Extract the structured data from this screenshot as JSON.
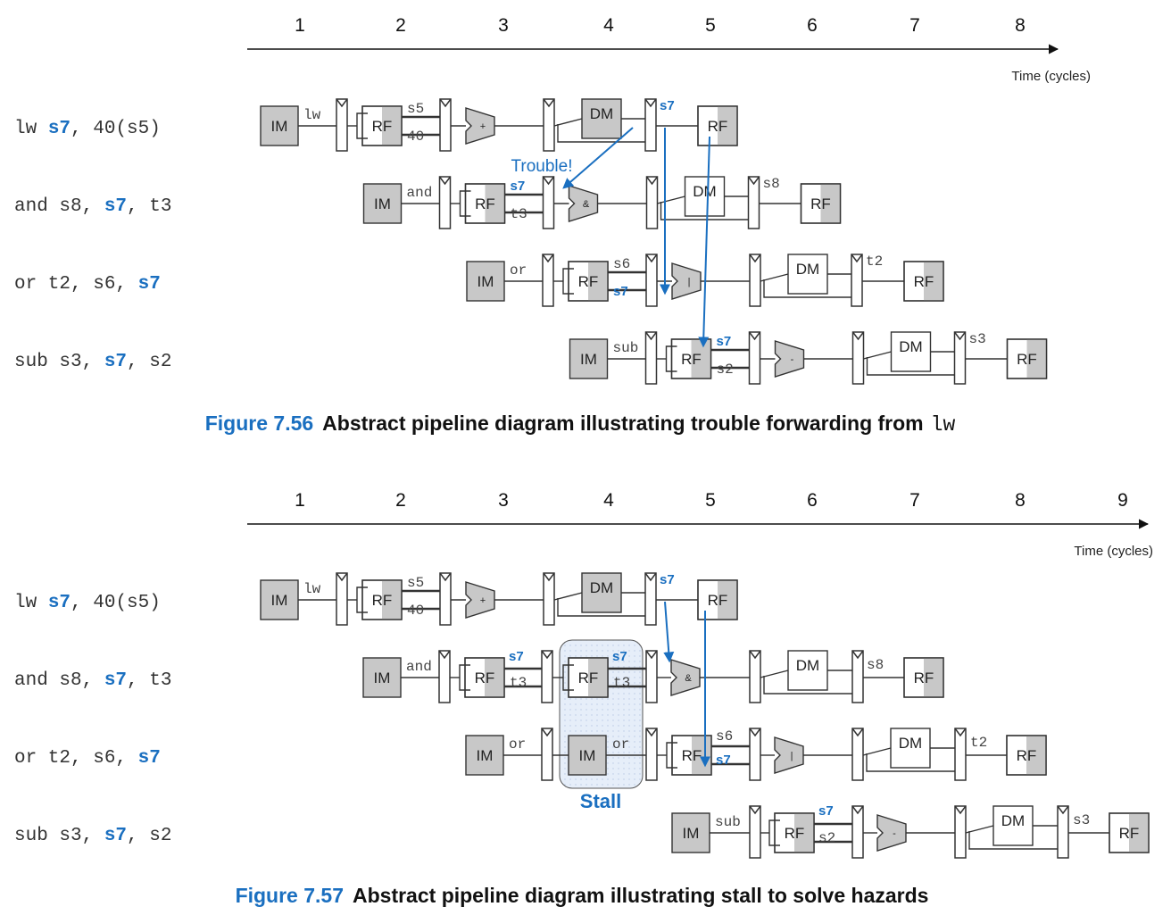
{
  "colors": {
    "accent": "#1a6fc0",
    "shaded": "#c8c8c8",
    "line": "#333333",
    "stall_fill": "#e3ebf7"
  },
  "figures": [
    {
      "cycles": [
        "1",
        "2",
        "3",
        "4",
        "5",
        "6",
        "7",
        "8"
      ],
      "time_label": "Time (cycles)",
      "instructions": [
        {
          "parts": [
            "lw  ",
            "s7",
            ", 40(s5)"
          ]
        },
        {
          "parts": [
            "and s8, ",
            "s7",
            ", t3"
          ]
        },
        {
          "parts": [
            "or  t2, s6, ",
            "s7",
            ""
          ]
        },
        {
          "parts": [
            "sub s3, ",
            "s7",
            ", s2"
          ]
        }
      ],
      "trouble_label": "Trouble!",
      "caption_number": "Figure 7.56",
      "caption_text": "Abstract pipeline diagram illustrating trouble forwarding from",
      "caption_code": "lw"
    },
    {
      "cycles": [
        "1",
        "2",
        "3",
        "4",
        "5",
        "6",
        "7",
        "8",
        "9"
      ],
      "time_label": "Time (cycles)",
      "instructions": [
        {
          "parts": [
            "lw  ",
            "s7",
            ", 40(s5)"
          ]
        },
        {
          "parts": [
            "and s8, ",
            "s7",
            ", t3"
          ]
        },
        {
          "parts": [
            "or  t2, s6, ",
            "s7",
            ""
          ]
        },
        {
          "parts": [
            "sub s3, ",
            "s7",
            ", s2"
          ]
        }
      ],
      "stall_label": "Stall",
      "caption_number": "Figure 7.57",
      "caption_text": "Abstract pipeline diagram illustrating stall to solve hazards"
    }
  ],
  "units": {
    "im": "IM",
    "rf": "RF",
    "dm": "DM",
    "alu_ops": [
      "+",
      "&",
      "|",
      "-"
    ]
  },
  "pipeline_labels": {
    "fig1": [
      {
        "after_im": "lw",
        "rf_top": "s5",
        "rf_bottom": "40",
        "wb": "s7"
      },
      {
        "after_im": "and",
        "rf_top": "s7",
        "rf_bottom": "t3",
        "wb": "s8"
      },
      {
        "after_im": "or",
        "rf_top": "s6",
        "rf_bottom": "s7",
        "wb": "t2"
      },
      {
        "after_im": "sub",
        "rf_top": "s7",
        "rf_bottom": "s2",
        "wb": "s3"
      }
    ],
    "fig2": [
      {
        "after_im": "lw",
        "rf_top": "s5",
        "rf_bottom": "40",
        "wb": "s7"
      },
      {
        "after_im": "and",
        "rf_top": "s7",
        "rf_bottom": "t3",
        "stall_top": "s7",
        "stall_bottom": "t3",
        "wb": "s8"
      },
      {
        "after_im": "or",
        "stall_label": "or",
        "rf_top": "s6",
        "rf_bottom": "s7",
        "wb": "t2"
      },
      {
        "after_im": "sub",
        "rf_top": "s7",
        "rf_bottom": "s2",
        "wb": "s3"
      }
    ]
  }
}
